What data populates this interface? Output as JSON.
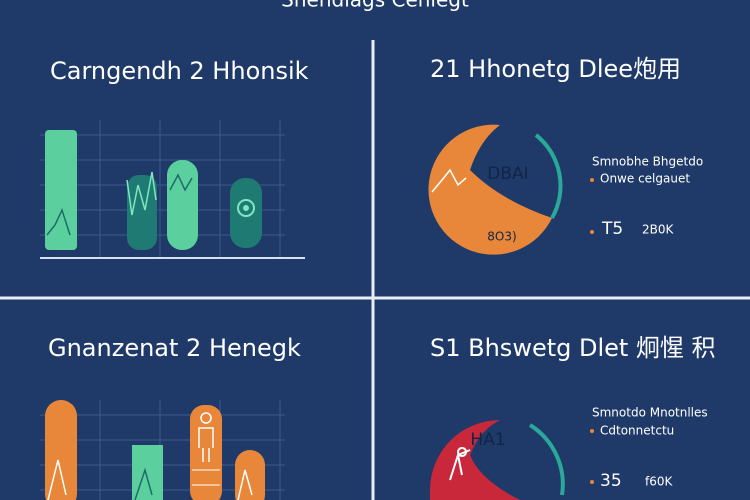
{
  "header": {
    "title": "Shendlags Cenlegt"
  },
  "panels": [
    {
      "title": "Carngendh 2 Hhonsik"
    },
    {
      "title": "21 Hhonetg Dlee炮用",
      "center_top": "DBAI",
      "center_bottom": "8O3)",
      "legend": [
        "Smnobhe Bhgetdo",
        "Onwe celgauet"
      ],
      "stat": "T5",
      "stat_note": "2B0K"
    },
    {
      "title": "Gnanzenat 2 Henegk"
    },
    {
      "title": "S1 Bhswetg Dlet 炯惺 积",
      "center_top": "HA1",
      "legend": [
        "Smnotdo Mnotnlles",
        "Cdtonnetctu"
      ],
      "stat": "35",
      "stat_note": "f60K"
    }
  ]
}
